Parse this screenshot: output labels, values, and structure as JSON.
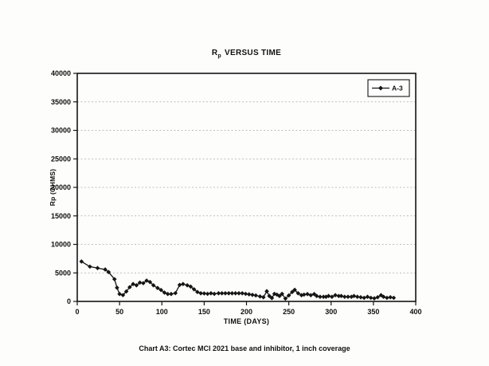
{
  "page": {
    "caption": "Chart A3: Cortec MCI 2021 base and inhibitor, 1 inch coverage"
  },
  "chart_data": {
    "type": "line",
    "title": {
      "main": "R",
      "sub": "p",
      "rest": "VERSUS TIME"
    },
    "xlabel": "TIME (DAYS)",
    "ylabel": "Rp (OHMS)",
    "xlim": [
      0,
      400
    ],
    "ylim": [
      0,
      40000
    ],
    "xticks": [
      0,
      50,
      100,
      150,
      200,
      250,
      300,
      350,
      400
    ],
    "yticks": [
      0,
      5000,
      10000,
      15000,
      20000,
      25000,
      30000,
      35000,
      40000
    ],
    "grid": "horizontal-dashed",
    "legend": {
      "position": "top-right",
      "entries": [
        {
          "label": "A-3",
          "marker": "diamond",
          "color": "#151515"
        }
      ]
    },
    "colors": {
      "line": "#151515",
      "grid": "#a9a9a9",
      "frame": "#151515",
      "background": "#fdfdfc"
    },
    "series": [
      {
        "name": "A-3",
        "x": [
          5,
          15,
          24,
          33,
          37,
          44,
          47,
          50,
          54,
          58,
          62,
          66,
          70,
          74,
          78,
          82,
          86,
          90,
          95,
          99,
          103,
          107,
          111,
          116,
          121,
          125,
          130,
          134,
          138,
          142,
          146,
          150,
          154,
          158,
          162,
          167,
          171,
          175,
          179,
          183,
          187,
          191,
          195,
          199,
          203,
          207,
          211,
          216,
          220,
          224,
          227,
          230,
          233,
          236,
          239,
          242,
          246,
          250,
          254,
          257,
          261,
          265,
          268,
          272,
          276,
          280,
          283,
          287,
          291,
          294,
          297,
          301,
          305,
          309,
          312,
          316,
          320,
          324,
          327,
          331,
          335,
          339,
          343,
          347,
          351,
          355,
          359,
          362,
          366,
          370,
          374
        ],
        "y": [
          7000,
          6100,
          5850,
          5600,
          5150,
          3900,
          2400,
          1300,
          1100,
          1750,
          2500,
          3050,
          2830,
          3300,
          3200,
          3650,
          3400,
          2830,
          2350,
          2000,
          1550,
          1300,
          1300,
          1450,
          2900,
          3050,
          2830,
          2600,
          2130,
          1650,
          1430,
          1400,
          1330,
          1430,
          1330,
          1430,
          1430,
          1430,
          1430,
          1430,
          1430,
          1430,
          1430,
          1330,
          1250,
          1150,
          1050,
          870,
          730,
          1790,
          950,
          590,
          1330,
          1190,
          950,
          1330,
          490,
          1050,
          1650,
          2030,
          1430,
          1090,
          1190,
          1290,
          1090,
          1290,
          950,
          810,
          810,
          810,
          950,
          810,
          1090,
          950,
          950,
          810,
          810,
          810,
          950,
          810,
          730,
          630,
          810,
          630,
          540,
          730,
          1090,
          810,
          630,
          730,
          630
        ]
      }
    ]
  }
}
